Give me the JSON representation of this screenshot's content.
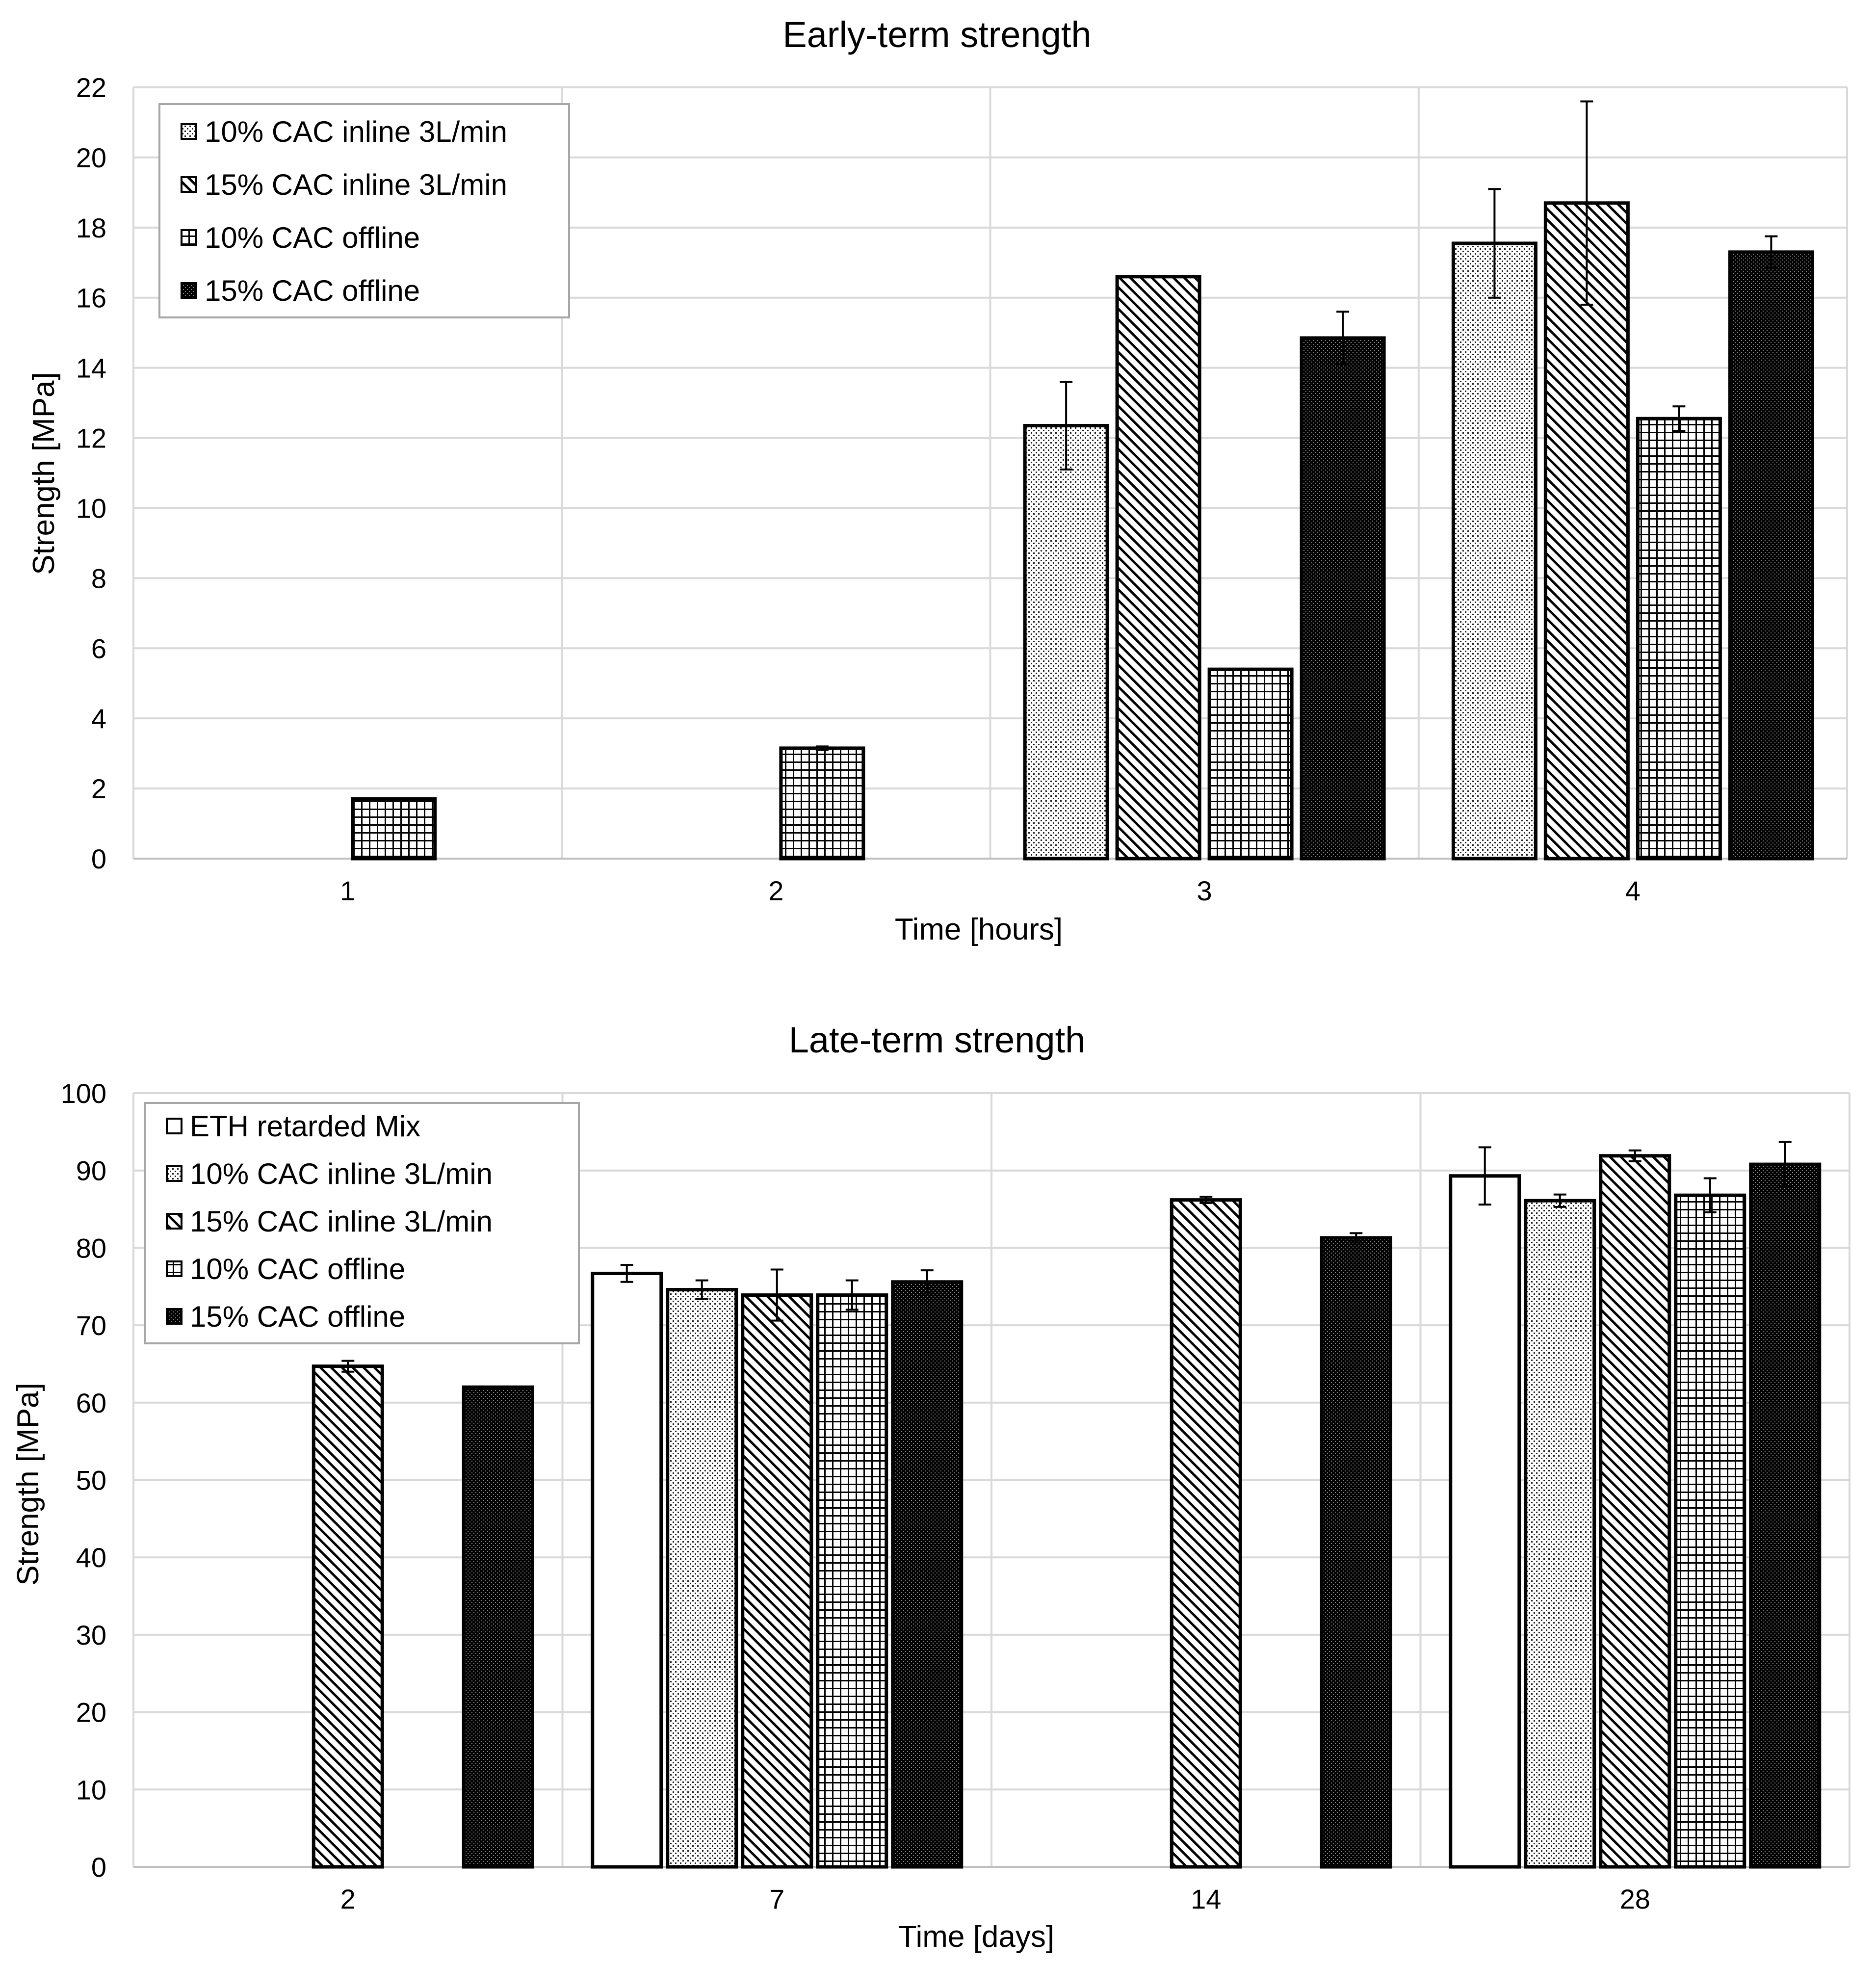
{
  "chart_data": [
    {
      "type": "bar",
      "title": "Early-term strength",
      "xlabel": "Time [hours]",
      "ylabel": "Strength [MPa]",
      "ylim": [
        0,
        22
      ],
      "ytick_step": 2,
      "yticks": [
        "0",
        "2",
        "4",
        "6",
        "8",
        "10",
        "12",
        "14",
        "16",
        "18",
        "20",
        "22"
      ],
      "categories": [
        "1",
        "2",
        "3",
        "4"
      ],
      "grid": true,
      "legend_position": "top-left",
      "series": [
        {
          "name": "10% CAC inline 3L/min",
          "pattern": "dots",
          "values": [
            null,
            null,
            12.35,
            17.55
          ],
          "errors": [
            null,
            null,
            1.25,
            1.55
          ]
        },
        {
          "name": "15% CAC inline 3L/min",
          "pattern": "diagonal",
          "values": [
            null,
            null,
            16.6,
            18.7
          ],
          "errors": [
            null,
            null,
            0,
            2.9
          ]
        },
        {
          "name": "10% CAC offline",
          "pattern": "grid",
          "values": [
            1.7,
            3.15,
            5.4,
            12.55
          ],
          "errors": [
            0,
            0.05,
            0,
            0.35
          ]
        },
        {
          "name": "15% CAC offline",
          "pattern": "dense",
          "values": [
            null,
            null,
            14.85,
            17.3
          ],
          "errors": [
            null,
            null,
            0.75,
            0.45
          ]
        }
      ]
    },
    {
      "type": "bar",
      "title": "Late-term strength",
      "xlabel": "Time [days]",
      "ylabel": "Strength [MPa]",
      "ylim": [
        0,
        100
      ],
      "ytick_step": 10,
      "yticks": [
        "0",
        "10",
        "20",
        "30",
        "40",
        "50",
        "60",
        "70",
        "80",
        "90",
        "100"
      ],
      "categories": [
        "2",
        "7",
        "14",
        "28"
      ],
      "grid": true,
      "legend_position": "top-left",
      "series": [
        {
          "name": "ETH retarded Mix",
          "pattern": "white",
          "values": [
            null,
            76.7,
            null,
            89.3
          ],
          "errors": [
            null,
            1.1,
            null,
            3.7
          ]
        },
        {
          "name": "10% CAC inline 3L/min",
          "pattern": "dots",
          "values": [
            null,
            74.6,
            null,
            86.1
          ],
          "errors": [
            null,
            1.2,
            null,
            0.8
          ]
        },
        {
          "name": "15% CAC inline 3L/min",
          "pattern": "diagonal",
          "values": [
            64.7,
            73.9,
            86.2,
            91.9
          ],
          "errors": [
            0.7,
            3.3,
            0.4,
            0.7
          ]
        },
        {
          "name": "10% CAC offline",
          "pattern": "grid",
          "values": [
            null,
            73.9,
            null,
            86.8
          ],
          "errors": [
            null,
            1.9,
            null,
            2.2
          ]
        },
        {
          "name": "15% CAC offline",
          "pattern": "dense",
          "values": [
            62.0,
            75.6,
            81.3,
            90.8
          ],
          "errors": [
            0,
            1.5,
            0.6,
            2.9
          ]
        }
      ]
    }
  ]
}
